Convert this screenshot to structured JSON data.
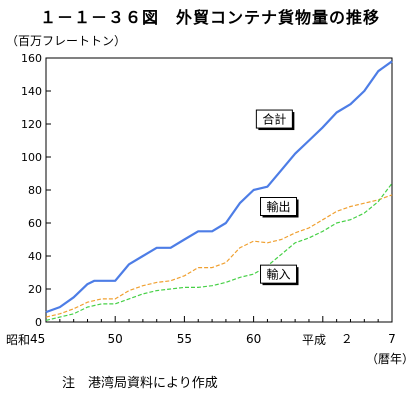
{
  "title": "１－１－３６図　外貿コンテナ貨物量の推移",
  "unit_label": "（百万フレートトン）",
  "x_unit_label": "（暦年）",
  "note": "注　港湾局資料により作成",
  "era_labels": {
    "showa": "昭和",
    "heisei": "平成"
  },
  "colors": {
    "total": "#4d7de6",
    "exports": "#f0a030",
    "imports": "#46d046"
  },
  "chart_data": {
    "type": "line",
    "x_ticks": [
      {
        "x": 0,
        "label": "45"
      },
      {
        "x": 5,
        "label": "50"
      },
      {
        "x": 10,
        "label": "55"
      },
      {
        "x": 15,
        "label": "60"
      },
      {
        "x": 20,
        "label": "２"
      },
      {
        "x": 25,
        "label": "7"
      }
    ],
    "xlim": [
      0,
      25
    ],
    "ylim": [
      0,
      160
    ],
    "y_ticks": [
      0,
      20,
      40,
      60,
      80,
      100,
      120,
      140,
      160
    ],
    "series": [
      {
        "name": "合計",
        "style": "solid",
        "x": [
          0,
          1,
          2,
          3,
          3.5,
          4,
          5,
          6,
          7,
          8,
          9,
          10,
          11,
          12,
          13,
          14,
          15,
          16,
          17,
          18,
          19,
          20,
          21,
          22,
          23,
          24,
          25
        ],
        "values": [
          6,
          9,
          15,
          23,
          25,
          25,
          25,
          35,
          40,
          45,
          45,
          50,
          55,
          55,
          60,
          72,
          80,
          82,
          92,
          102,
          110,
          118,
          127,
          132,
          140,
          152,
          158
        ]
      },
      {
        "name": "輸出",
        "style": "dashed",
        "x": [
          0,
          1,
          2,
          3,
          4,
          5,
          6,
          7,
          8,
          9,
          10,
          11,
          12,
          13,
          14,
          15,
          16,
          17,
          18,
          19,
          20,
          21,
          22,
          23,
          24,
          25
        ],
        "values": [
          3,
          5,
          8,
          12,
          14,
          14,
          19,
          22,
          24,
          25,
          28,
          33,
          33,
          36,
          45,
          49,
          48,
          50,
          54,
          57,
          62,
          67,
          70,
          72,
          74,
          77
        ]
      },
      {
        "name": "輸入",
        "style": "dashed",
        "x": [
          0,
          1,
          2,
          3,
          4,
          5,
          6,
          7,
          8,
          9,
          10,
          11,
          12,
          13,
          14,
          15,
          16,
          17,
          18,
          19,
          20,
          21,
          22,
          23,
          24,
          25
        ],
        "values": [
          1,
          3,
          5,
          9,
          11,
          11,
          14,
          17,
          19,
          20,
          21,
          21,
          22,
          24,
          27,
          29,
          34,
          41,
          48,
          51,
          55,
          60,
          62,
          66,
          73,
          84
        ]
      }
    ],
    "annotations": [
      {
        "series": "合計",
        "x": 16.5,
        "y": 123
      },
      {
        "series": "輸出",
        "x": 16.8,
        "y": 70
      },
      {
        "series": "輸入",
        "x": 16.8,
        "y": 29
      }
    ]
  }
}
